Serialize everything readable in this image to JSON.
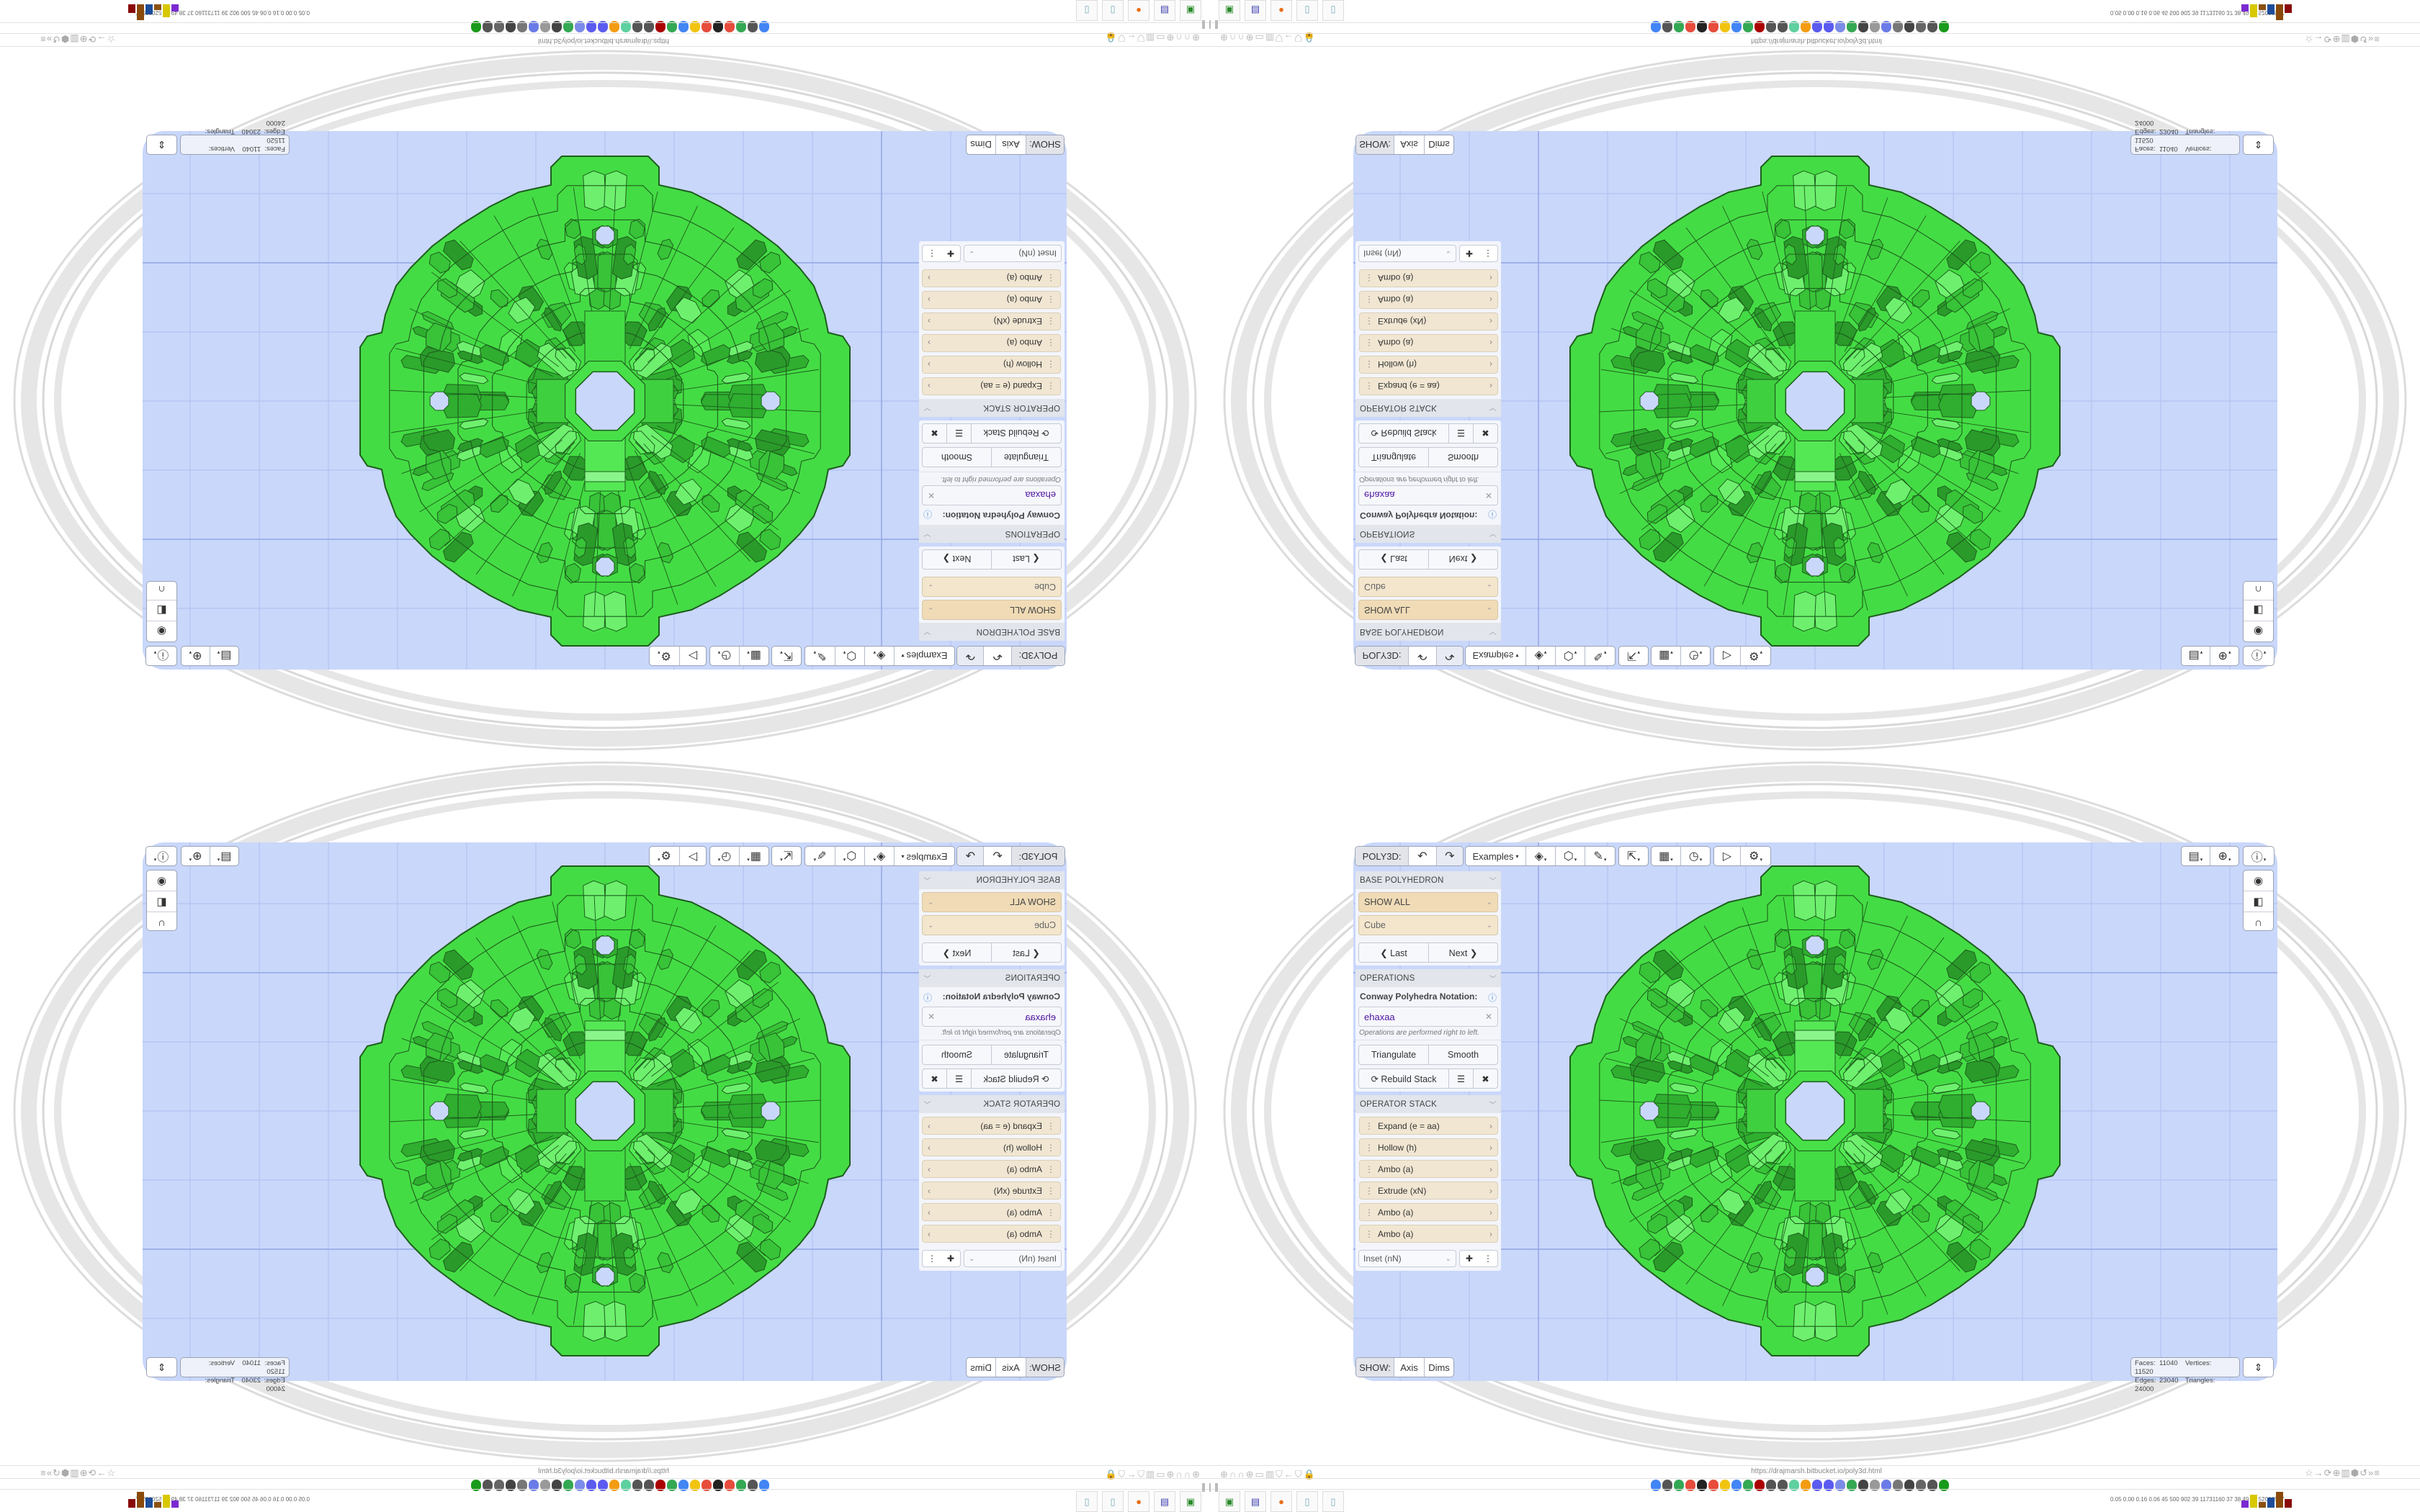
{
  "toolbar": {
    "app_label": "POLY3D:",
    "undo_icon": "undo-icon",
    "redo_icon": "redo-icon",
    "examples_label": "Examples",
    "tools": [
      {
        "icon": "paint-bucket-icon",
        "glyph": "◈"
      },
      {
        "icon": "cube-play-icon",
        "glyph": "⬡"
      },
      {
        "icon": "edit-pencil-icon",
        "glyph": "✎"
      },
      {
        "icon": "export-icon",
        "glyph": "⇱"
      },
      {
        "icon": "calendar-icon",
        "glyph": "▦"
      },
      {
        "icon": "clock-icon",
        "glyph": "◷"
      },
      {
        "icon": "play-icon",
        "glyph": "▷"
      },
      {
        "icon": "settings-gear-icon",
        "glyph": "⚙"
      }
    ]
  },
  "panel": {
    "base": {
      "header": "BASE POLYHEDRON",
      "category": "SHOW ALL",
      "polyhedron": "Cube",
      "last_label": "❮ Last",
      "next_label": "Next ❯"
    },
    "operations": {
      "header": "OPERATIONS",
      "notation_label": "Conway Polyhedra Notation:",
      "notation_value": "ehaxaa",
      "hint": "Operations are performed right to left.",
      "triangulate_label": "Triangulate",
      "smooth_label": "Smooth",
      "rebuild_label": "⟳ Rebuild Stack"
    },
    "stack": {
      "header": "OPERATOR STACK",
      "items": [
        "Expand (e = aa)",
        "Hollow (h)",
        "Ambo (a)",
        "Extrude (xN)",
        "Ambo (a)",
        "Ambo (a)"
      ],
      "add_select": "Inset (nN)"
    }
  },
  "show": {
    "label": "SHOW:",
    "axis": "Axis",
    "dims": "Dims"
  },
  "stats": {
    "faces_label": "Faces:",
    "faces": "11040",
    "vertices_label": "Vertices:",
    "vertices": "11520",
    "edges_label": "Edges:",
    "edges": "23040",
    "triangles_label": "Triangles:",
    "triangles": "24000"
  },
  "browser": {
    "url": "https://drajmarsh.bitbucket.io/poly3d.html",
    "system_stats": "0.05 0.00 0.16 0.06  45  500  902  39  11731160  37  38  49  47  52066517"
  },
  "colors": {
    "viewport_bg": "#c9d7fb",
    "polyhedron_fill": "#44dc44",
    "polyhedron_edge": "#1d5e1d",
    "accent_tan": "#f0dbb6",
    "notation_text": "#4b14a0"
  }
}
